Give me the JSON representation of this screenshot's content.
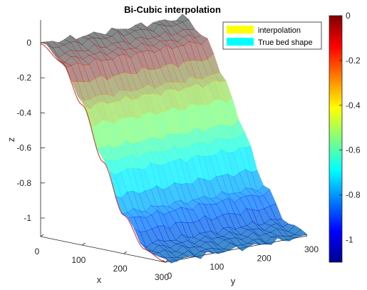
{
  "chart_data": {
    "type": "surface",
    "title": "Bi-Cubic interpolation",
    "xlabel": "x",
    "ylabel": "y",
    "zlabel": "z",
    "x_ticks": [
      "0",
      "100",
      "200",
      "300"
    ],
    "y_ticks": [
      "0",
      "100",
      "200",
      "300"
    ],
    "z_ticks": [
      "0",
      "-0.2",
      "-0.4",
      "-0.6",
      "-0.8",
      "-1"
    ],
    "xlim": [
      0,
      300
    ],
    "ylim": [
      0,
      300
    ],
    "zlim": [
      -1.1,
      0
    ],
    "legend": {
      "position": "top-right",
      "entries": [
        {
          "label": "interpolation",
          "color": "#ffff00"
        },
        {
          "label": "True bed shape",
          "color": "#00ffff"
        }
      ]
    },
    "colorbar": {
      "colormap": "jet",
      "range": [
        -1.1,
        0
      ],
      "ticks": [
        "0",
        "-0.2",
        "-0.4",
        "-0.6",
        "-0.8",
        "-1"
      ]
    },
    "surface_profile": {
      "along": "x",
      "x": [
        0,
        50,
        100,
        150,
        200,
        250,
        300
      ],
      "z": [
        0,
        -0.08,
        -0.3,
        -0.6,
        -0.88,
        -1.05,
        -1.1
      ]
    },
    "true_bed_color": "#00ffff"
  }
}
